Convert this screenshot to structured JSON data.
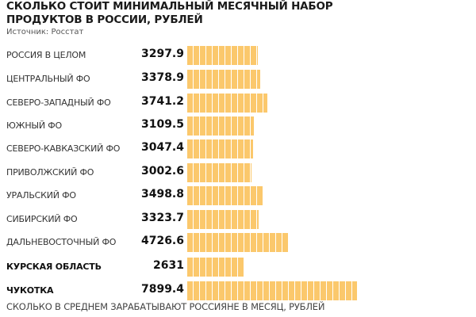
{
  "chart_data": {
    "type": "bar",
    "orientation": "horizontal",
    "title": "СКОЛЬКО СТОИТ МИНИМАЛЬНЫЙ МЕСЯЧНЫЙ НАБОР ПРОДУКТОВ В РОССИИ, РУБЛЕЙ",
    "source": "Источник: Росстат",
    "categories": [
      "РОССИЯ В ЦЕЛОМ",
      "ЦЕНТРАЛЬНЫЙ ФО",
      "СЕВЕРО-ЗАПАДНЫЙ ФО",
      "ЮЖНЫЙ ФО",
      "СЕВЕРО-КАВКАЗСКИЙ ФО",
      "ПРИВОЛЖСКИЙ ФО",
      "УРАЛЬСКИЙ ФО",
      "СИБИРСКИЙ ФО",
      "ДАЛЬНЕВОСТОЧНЫЙ ФО",
      "КУРСКАЯ ОБЛАСТЬ",
      "ЧУКОТКА"
    ],
    "values": [
      3297.9,
      3378.9,
      3741.2,
      3109.5,
      3047.4,
      3002.6,
      3498.8,
      3323.7,
      4726.6,
      2631,
      7899.4
    ],
    "labels": [
      "3297.9",
      "3378.9",
      "3741.2",
      "3109.5",
      "3047.4",
      "3002.6",
      "3498.8",
      "3323.7",
      "4726.6",
      "2631",
      "7899.4"
    ],
    "bold_labels": [
      false,
      false,
      false,
      false,
      false,
      false,
      false,
      false,
      false,
      true,
      true
    ],
    "bar_color": "#fbc86c",
    "xlim": [
      0,
      7899.4
    ]
  },
  "footer": "СКОЛЬКО В СРЕДНЕМ ЗАРАБАТЫВАЮТ РОССИЯНЕ В МЕСЯЦ, РУБЛЕЙ"
}
